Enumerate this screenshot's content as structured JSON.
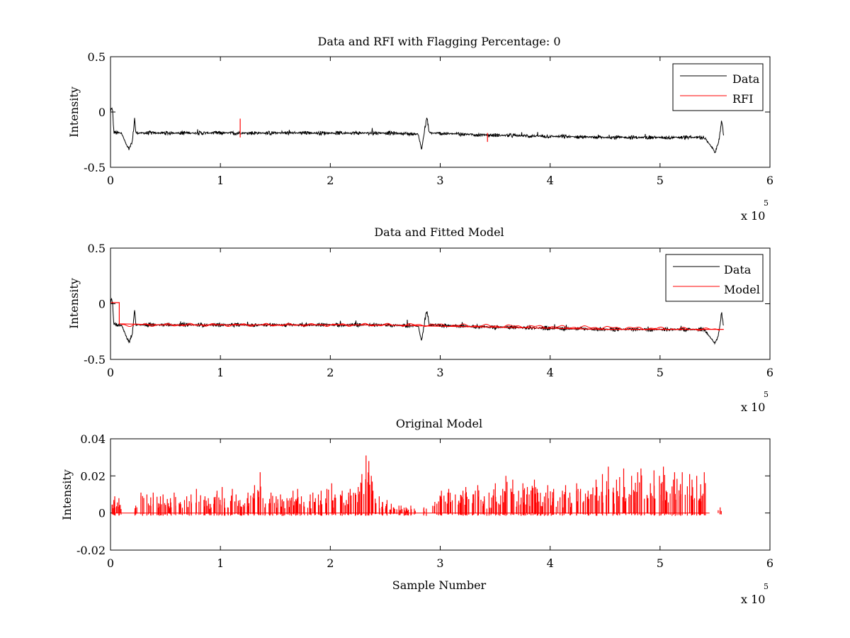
{
  "chart_data": [
    {
      "type": "line",
      "title": "Data and RFI with Flagging Percentage: 0",
      "xlabel": "",
      "ylabel": "Intensity",
      "xlim": [
        0,
        6
      ],
      "ylim": [
        -0.5,
        0.5
      ],
      "x_ticks": [
        "0",
        "1",
        "2",
        "3",
        "4",
        "5",
        "6"
      ],
      "y_ticks": [
        "-0.5",
        "0",
        "0.5"
      ],
      "x_multiplier": {
        "base": "x 10",
        "exponent": "5"
      },
      "legend": {
        "position": "top-right",
        "entries": [
          {
            "name": "Data",
            "color": "#000000"
          },
          {
            "name": "RFI",
            "color": "#ff0000"
          }
        ]
      },
      "series": [
        {
          "name": "Data",
          "color": "#000000",
          "x": [
            0,
            0.01,
            0.02,
            0.03,
            0.05,
            0.1,
            0.15,
            0.17,
            0.2,
            0.22,
            0.23,
            0.3,
            0.5,
            0.8,
            1.0,
            1.2,
            1.5,
            2.0,
            2.5,
            2.8,
            2.83,
            2.86,
            2.88,
            2.9,
            3.2,
            3.5,
            4.0,
            4.5,
            5.0,
            5.4,
            5.48,
            5.5,
            5.53,
            5.56,
            5.58
          ],
          "y": [
            0.0,
            0.04,
            0.0,
            -0.18,
            -0.19,
            -0.19,
            -0.31,
            -0.34,
            -0.26,
            -0.05,
            -0.19,
            -0.19,
            -0.19,
            -0.19,
            -0.19,
            -0.19,
            -0.19,
            -0.19,
            -0.19,
            -0.2,
            -0.34,
            -0.15,
            -0.05,
            -0.19,
            -0.2,
            -0.21,
            -0.22,
            -0.23,
            -0.23,
            -0.23,
            -0.33,
            -0.36,
            -0.3,
            -0.08,
            -0.22
          ],
          "noise": 0.012
        },
        {
          "name": "RFI",
          "color": "#ff0000",
          "x": [
            1.18,
            1.18,
            3.43,
            3.43
          ],
          "y": [
            -0.23,
            -0.06,
            -0.27,
            -0.19
          ]
        }
      ]
    },
    {
      "type": "line",
      "title": "Data and Fitted Model",
      "xlabel": "",
      "ylabel": "Intensity",
      "xlim": [
        0,
        6
      ],
      "ylim": [
        -0.5,
        0.5
      ],
      "x_ticks": [
        "0",
        "1",
        "2",
        "3",
        "4",
        "5",
        "6"
      ],
      "y_ticks": [
        "-0.5",
        "0",
        "0.5"
      ],
      "x_multiplier": {
        "base": "x 10",
        "exponent": "5"
      },
      "legend": {
        "position": "top-right",
        "entries": [
          {
            "name": "Data",
            "color": "#000000"
          },
          {
            "name": "Model",
            "color": "#ff0000"
          }
        ]
      },
      "series": [
        {
          "name": "Data",
          "color": "#000000",
          "x": [
            0,
            0.01,
            0.02,
            0.03,
            0.05,
            0.1,
            0.15,
            0.17,
            0.2,
            0.22,
            0.23,
            0.3,
            0.5,
            0.8,
            1.0,
            1.2,
            1.5,
            2.0,
            2.5,
            2.8,
            2.83,
            2.86,
            2.88,
            2.9,
            3.2,
            3.5,
            4.0,
            4.5,
            5.0,
            5.4,
            5.48,
            5.5,
            5.53,
            5.56,
            5.58
          ],
          "y": [
            0.0,
            0.04,
            0.0,
            -0.18,
            -0.19,
            -0.19,
            -0.31,
            -0.34,
            -0.26,
            -0.05,
            -0.19,
            -0.19,
            -0.19,
            -0.19,
            -0.19,
            -0.19,
            -0.19,
            -0.19,
            -0.19,
            -0.2,
            -0.34,
            -0.15,
            -0.05,
            -0.19,
            -0.2,
            -0.21,
            -0.22,
            -0.23,
            -0.23,
            -0.23,
            -0.33,
            -0.36,
            -0.3,
            -0.08,
            -0.22
          ],
          "noise": 0.012
        },
        {
          "name": "Model",
          "color": "#ff0000",
          "x": [
            0,
            0.08,
            0.08,
            0.5,
            1.0,
            1.5,
            2.0,
            2.5,
            2.9,
            3.5,
            4.0,
            4.5,
            5.0,
            5.5,
            5.58
          ],
          "y": [
            0.01,
            0.01,
            -0.18,
            -0.19,
            -0.19,
            -0.19,
            -0.19,
            -0.19,
            -0.2,
            -0.21,
            -0.22,
            -0.23,
            -0.23,
            -0.23,
            -0.23
          ]
        }
      ]
    },
    {
      "type": "line",
      "title": "Original Model",
      "xlabel": "Sample Number",
      "ylabel": "Intensity",
      "xlim": [
        0,
        6
      ],
      "ylim": [
        -0.02,
        0.04
      ],
      "x_ticks": [
        "0",
        "1",
        "2",
        "3",
        "4",
        "5",
        "6"
      ],
      "y_ticks": [
        "-0.02",
        "0",
        "0.02",
        "0.04"
      ],
      "x_multiplier": {
        "base": "x 10",
        "exponent": "5"
      },
      "series": [
        {
          "color": "#ff0000",
          "x": [
            0.02,
            0.05,
            0.08,
            0.22,
            0.3,
            0.35,
            0.4,
            0.45,
            0.5,
            0.55,
            0.6,
            0.65,
            0.7,
            0.75,
            0.8,
            0.85,
            0.9,
            0.95,
            1.0,
            1.05,
            1.1,
            1.15,
            1.2,
            1.25,
            1.3,
            1.35,
            1.4,
            1.45,
            1.5,
            1.55,
            1.6,
            1.65,
            1.7,
            1.75,
            1.8,
            1.85,
            1.9,
            1.95,
            2.0,
            2.05,
            2.1,
            2.15,
            2.2,
            2.25,
            2.3,
            2.33,
            2.36,
            2.4,
            2.45,
            2.5,
            2.55,
            2.6,
            2.65,
            2.7,
            2.75,
            2.85,
            2.95,
            3.0,
            3.05,
            3.1,
            3.15,
            3.2,
            3.25,
            3.3,
            3.35,
            3.4,
            3.45,
            3.5,
            3.55,
            3.6,
            3.65,
            3.7,
            3.75,
            3.8,
            3.85,
            3.9,
            3.95,
            4.0,
            4.05,
            4.1,
            4.15,
            4.2,
            4.25,
            4.3,
            4.35,
            4.4,
            4.45,
            4.5,
            4.55,
            4.6,
            4.65,
            4.7,
            4.75,
            4.8,
            4.85,
            4.9,
            4.95,
            5.0,
            5.05,
            5.1,
            5.15,
            5.2,
            5.25,
            5.3,
            5.35,
            5.4,
            5.55
          ],
          "y": [
            0.009,
            0.007,
            0.008,
            0.004,
            0.011,
            0.01,
            0.011,
            0.009,
            0.01,
            0.008,
            0.011,
            0.007,
            0.009,
            0.01,
            0.013,
            0.009,
            0.008,
            0.012,
            0.014,
            0.008,
            0.013,
            0.01,
            0.007,
            0.011,
            0.015,
            0.022,
            0.008,
            0.011,
            0.009,
            0.01,
            0.008,
            0.012,
            0.013,
            0.009,
            0.01,
            0.011,
            0.012,
            0.013,
            0.016,
            0.01,
            0.012,
            0.011,
            0.013,
            0.014,
            0.021,
            0.031,
            0.028,
            0.012,
            0.009,
            0.007,
            0.005,
            0.004,
            0.004,
            0.003,
            0.004,
            0.003,
            0.006,
            0.012,
            0.011,
            0.013,
            0.01,
            0.012,
            0.014,
            0.012,
            0.015,
            0.009,
            0.011,
            0.016,
            0.013,
            0.02,
            0.018,
            0.012,
            0.016,
            0.014,
            0.018,
            0.013,
            0.011,
            0.015,
            0.013,
            0.012,
            0.015,
            0.011,
            0.016,
            0.013,
            0.012,
            0.018,
            0.014,
            0.021,
            0.025,
            0.018,
            0.024,
            0.014,
            0.02,
            0.022,
            0.024,
            0.016,
            0.023,
            0.02,
            0.025,
            0.018,
            0.022,
            0.022,
            0.021,
            0.018,
            0.02,
            0.022,
            0.003
          ]
        }
      ]
    }
  ]
}
